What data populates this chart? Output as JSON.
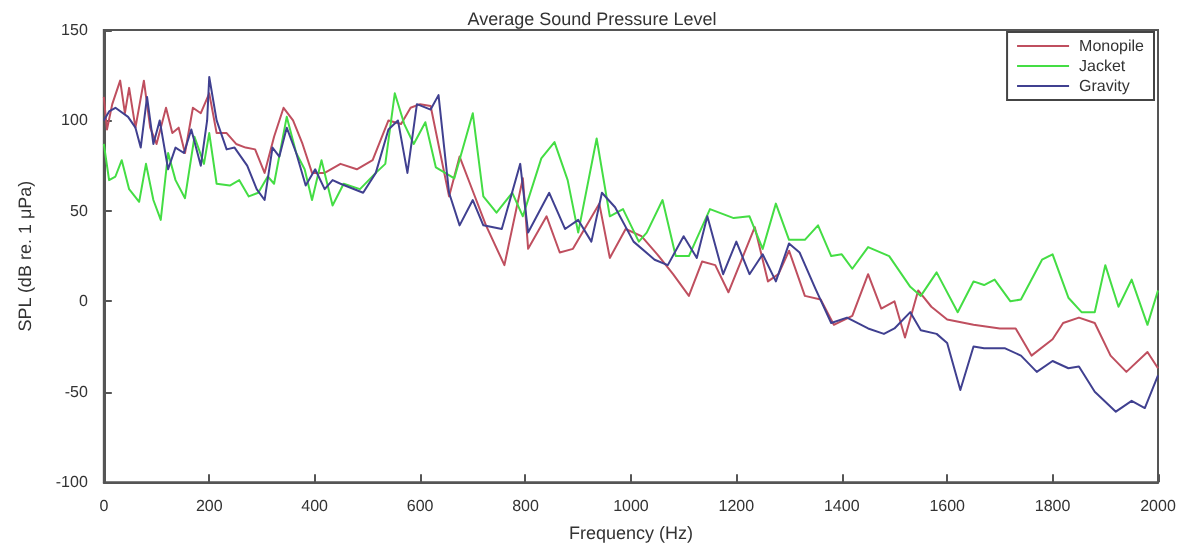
{
  "chart_data": {
    "type": "line",
    "title": "Average Sound Pressure Level",
    "xlabel": "Frequency (Hz)",
    "ylabel": "SPL (dB re. 1 μPa)",
    "xlim": [
      0,
      2000
    ],
    "xticks": [
      0,
      200,
      400,
      600,
      800,
      1000,
      1200,
      1400,
      1600,
      1800,
      2000
    ],
    "ylim": [
      -100,
      150
    ],
    "yticks": [
      -100,
      -50,
      0,
      50,
      100,
      150
    ],
    "grid": false,
    "legend": "top right",
    "marker": "none",
    "line_style": "solid",
    "series": [
      {
        "name": "Monopile",
        "color": "#bf4f5f",
        "x": [
          0,
          6,
          16,
          31,
          40,
          48,
          60,
          76,
          88,
          100,
          118,
          130,
          142,
          154,
          169,
          184,
          200,
          214,
          233,
          251,
          269,
          287,
          305,
          323,
          341,
          359,
          377,
          395,
          419,
          449,
          480,
          510,
          540,
          564,
          582,
          600,
          620,
          655,
          675,
          700,
          725,
          760,
          795,
          805,
          840,
          865,
          890,
          940,
          960,
          990,
          1020,
          1050,
          1080,
          1110,
          1135,
          1160,
          1185,
          1235,
          1260,
          1280,
          1300,
          1330,
          1360,
          1385,
          1420,
          1450,
          1475,
          1500,
          1520,
          1545,
          1570,
          1600,
          1650,
          1700,
          1730,
          1760,
          1800,
          1820,
          1850,
          1880,
          1910,
          1940,
          1980,
          2000
        ],
        "values": [
          113,
          95,
          109,
          122,
          104,
          118,
          96,
          122,
          96,
          87,
          107,
          93,
          96,
          82,
          107,
          104,
          115,
          93,
          93,
          87,
          85,
          84,
          71,
          91,
          107,
          100,
          87,
          71,
          71,
          76,
          73,
          78,
          100,
          98,
          107,
          109,
          108,
          58,
          80,
          61,
          42,
          20,
          68,
          29,
          47,
          27,
          29,
          54,
          24,
          40,
          36,
          26,
          15,
          3,
          22,
          20,
          5,
          41,
          11,
          15,
          28,
          3,
          1,
          -13,
          -8,
          15,
          -4,
          0,
          -20,
          6,
          -3,
          -10,
          -13,
          -15,
          -15,
          -30,
          -21,
          -12,
          -9,
          -12,
          -30,
          -39,
          -28,
          -37
        ]
      },
      {
        "name": "Jacket",
        "color": "#44dd44",
        "x": [
          0,
          10,
          22,
          34,
          48,
          67,
          80,
          94,
          108,
          122,
          136,
          154,
          172,
          190,
          200,
          214,
          239,
          257,
          275,
          293,
          311,
          323,
          347,
          365,
          381,
          395,
          413,
          434,
          455,
          486,
          516,
          534,
          552,
          570,
          588,
          610,
          630,
          665,
          700,
          720,
          745,
          775,
          795,
          830,
          855,
          880,
          900,
          935,
          960,
          985,
          1015,
          1030,
          1060,
          1085,
          1110,
          1150,
          1195,
          1225,
          1250,
          1275,
          1300,
          1330,
          1355,
          1380,
          1400,
          1420,
          1450,
          1490,
          1530,
          1550,
          1580,
          1620,
          1650,
          1670,
          1690,
          1720,
          1740,
          1780,
          1800,
          1830,
          1855,
          1880,
          1900,
          1925,
          1950,
          1980,
          2000
        ],
        "values": [
          87,
          67,
          69,
          78,
          62,
          55,
          76,
          56,
          45,
          82,
          67,
          57,
          91,
          76,
          93,
          65,
          64,
          67,
          58,
          60,
          69,
          65,
          102,
          82,
          73,
          56,
          78,
          53,
          65,
          62,
          71,
          76,
          115,
          98,
          87,
          99,
          74,
          68,
          104,
          58,
          49,
          60,
          47,
          79,
          88,
          67,
          38,
          90,
          47,
          51,
          33,
          38,
          56,
          25,
          25,
          51,
          46,
          47,
          29,
          54,
          34,
          34,
          42,
          25,
          26,
          18,
          30,
          25,
          8,
          3,
          16,
          -6,
          11,
          9,
          12,
          0,
          1,
          23,
          26,
          2,
          -6,
          -6,
          20,
          -3,
          12,
          -13,
          6
        ]
      },
      {
        "name": "Gravity",
        "color": "#404090",
        "x": [
          0,
          10,
          22,
          46,
          60,
          70,
          82,
          94,
          106,
          122,
          136,
          152,
          166,
          184,
          196,
          200,
          214,
          233,
          248,
          272,
          290,
          305,
          320,
          333,
          347,
          365,
          383,
          401,
          419,
          434,
          449,
          492,
          516,
          540,
          558,
          576,
          594,
          620,
          635,
          655,
          675,
          700,
          720,
          755,
          790,
          805,
          845,
          875,
          900,
          925,
          945,
          970,
          1005,
          1045,
          1070,
          1100,
          1125,
          1145,
          1175,
          1200,
          1225,
          1250,
          1275,
          1300,
          1320,
          1350,
          1380,
          1410,
          1450,
          1480,
          1500,
          1530,
          1550,
          1580,
          1600,
          1625,
          1650,
          1670,
          1710,
          1740,
          1770,
          1800,
          1830,
          1850,
          1880,
          1920,
          1950,
          1975,
          2000
        ],
        "values": [
          100,
          105,
          107,
          102,
          96,
          85,
          113,
          87,
          100,
          73,
          85,
          82,
          95,
          75,
          100,
          124,
          100,
          84,
          85,
          75,
          62,
          56,
          85,
          80,
          96,
          82,
          64,
          73,
          62,
          67,
          65,
          60,
          71,
          95,
          100,
          71,
          109,
          106,
          114,
          60,
          42,
          56,
          42,
          40,
          76,
          38,
          60,
          40,
          45,
          33,
          60,
          52,
          33,
          23,
          20,
          36,
          24,
          47,
          15,
          33,
          15,
          26,
          11,
          32,
          27,
          7,
          -12,
          -9,
          -15,
          -18,
          -15,
          -6,
          -16,
          -18,
          -23,
          -49,
          -25,
          -26,
          -26,
          -30,
          -39,
          -33,
          -37,
          -36,
          -50,
          -61,
          -55,
          -59,
          -41
        ]
      }
    ]
  }
}
